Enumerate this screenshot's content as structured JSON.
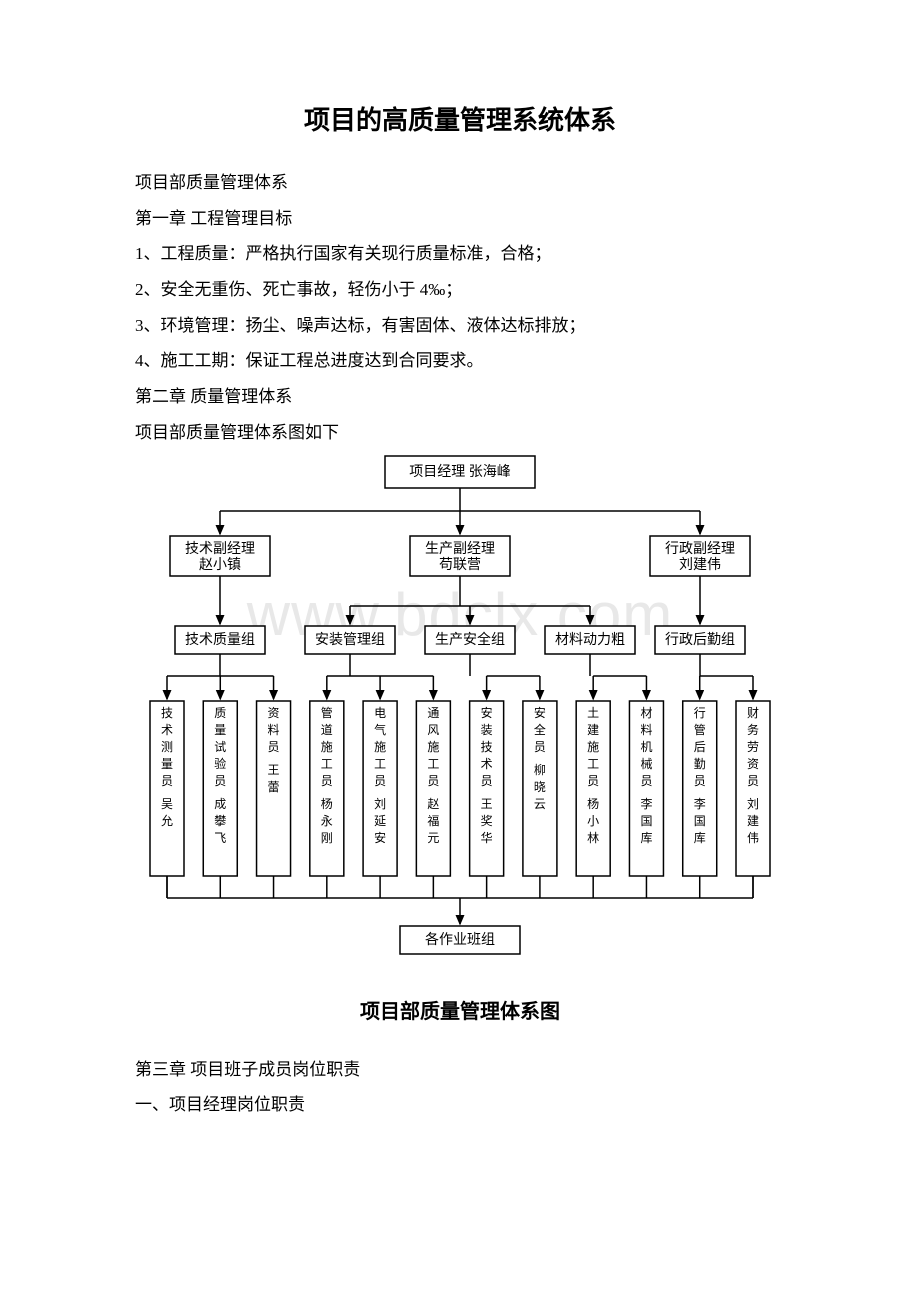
{
  "title": "项目的高质量管理系统体系",
  "watermark": "www.bdclx.com",
  "paragraphs": {
    "p1": "项目部质量管理体系",
    "p2": "第一章 工程管理目标",
    "p3": "1、工程质量：严格执行国家有关现行质量标准，合格；",
    "p4": "2、安全无重伤、死亡事故，轻伤小于 4‰；",
    "p5": "3、环境管理：扬尘、噪声达标，有害固体、液体达标排放；",
    "p6": "4、施工工期：保证工程总进度达到合同要求。",
    "p7": "第二章 质量管理体系",
    "p8": "项目部质量管理体系图如下"
  },
  "diagram": {
    "caption": "项目部质量管理体系图",
    "top": {
      "label": "项目经理  张海峰"
    },
    "level2": [
      {
        "l1": "技术副经理",
        "l2": "赵小镇"
      },
      {
        "l1": "生产副经理",
        "l2": "苟联营"
      },
      {
        "l1": "行政副经理",
        "l2": "刘建伟"
      }
    ],
    "level3": [
      "技术质量组",
      "安装管理组",
      "生产安全组",
      "材料动力粗",
      "行政后勤组"
    ],
    "level4": [
      {
        "role": "技术测量员",
        "name": "吴允",
        "name2": ""
      },
      {
        "role": "质量试验员",
        "name": "成攀飞",
        "name2": ""
      },
      {
        "role": "资料员",
        "name": "王蕾",
        "name2": ""
      },
      {
        "role": "管道施工员",
        "name": "杨永刚",
        "name2": ""
      },
      {
        "role": "电气施工员",
        "name": "刘延安",
        "name2": ""
      },
      {
        "role": "通风施工员",
        "name": "赵福元",
        "name2": ""
      },
      {
        "role": "安装技术员",
        "name": "王奖华",
        "name2": ""
      },
      {
        "role": "安全员",
        "name": "柳晓云",
        "name2": ""
      },
      {
        "role": "土建施工员",
        "name": "杨小林",
        "name2": ""
      },
      {
        "role": "材料机械员",
        "name": "李国库",
        "name2": ""
      },
      {
        "role": "行管后勤员",
        "name": "李国库",
        "name2": ""
      },
      {
        "role": "财务劳资员",
        "name": "刘建伟",
        "name2": ""
      }
    ],
    "bottom": "各作业班组"
  },
  "after": {
    "p1": "第三章 项目班子成员岗位职责",
    "p2": "一、项目经理岗位职责"
  }
}
